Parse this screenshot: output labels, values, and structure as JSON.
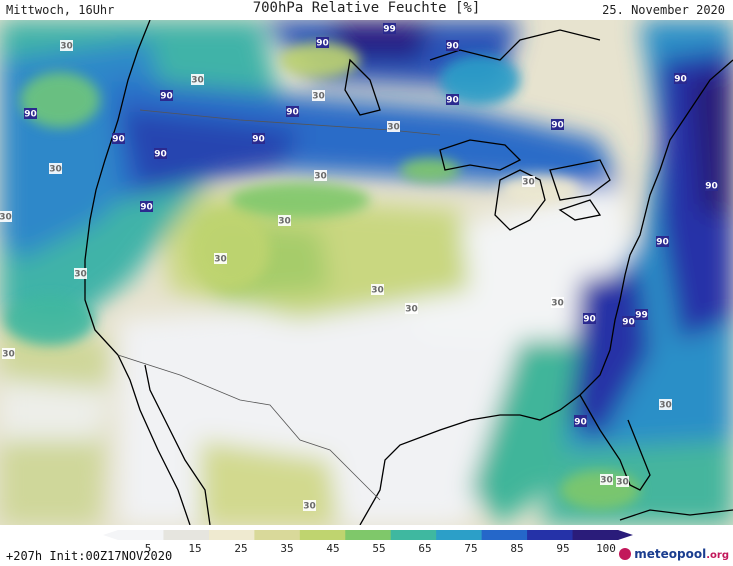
{
  "header": {
    "day_time": "Mittwoch, 16Uhr",
    "title": "700hPa Relative Feuchte [%]",
    "date": "25. November 2020"
  },
  "legend": {
    "ticks": [
      "5",
      "15",
      "25",
      "35",
      "45",
      "55",
      "65",
      "75",
      "85",
      "95",
      "100"
    ],
    "colors": [
      "#f4f5f7",
      "#e6e5df",
      "#efead0",
      "#d9d99a",
      "#bfd46f",
      "#7fc86a",
      "#3fb8a0",
      "#2c9fc8",
      "#2567c9",
      "#2532a8",
      "#2a1c7a"
    ]
  },
  "footer": {
    "run_info": "+207h Init:00Z17NOV2020",
    "logo_main": "meteopool",
    "logo_suffix": ".org"
  },
  "map_labels": [
    "90",
    "90",
    "90",
    "90",
    "90",
    "90",
    "90",
    "90",
    "90",
    "90",
    "90",
    "90",
    "90",
    "90",
    "90",
    "90",
    "90",
    "99",
    "99",
    "90",
    "90",
    "30",
    "30",
    "30",
    "30",
    "30",
    "30",
    "30",
    "30",
    "30",
    "30",
    "30",
    "30",
    "30",
    "30",
    "30",
    "30",
    "30",
    "30",
    "30"
  ]
}
